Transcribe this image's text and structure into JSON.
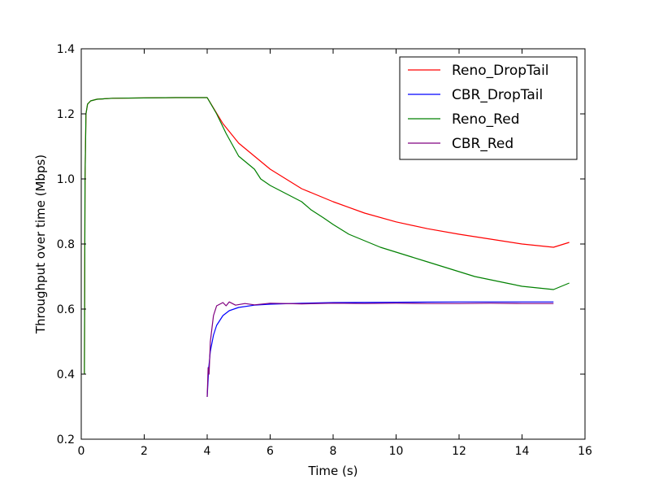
{
  "chart_data": {
    "type": "line",
    "title": "",
    "xlabel": "Time (s)",
    "ylabel": "Throughput over time (Mbps)",
    "xlim": [
      0,
      16
    ],
    "ylim": [
      0.2,
      1.4
    ],
    "xticks": [
      "0",
      "2",
      "4",
      "6",
      "8",
      "10",
      "12",
      "14",
      "16"
    ],
    "yticks": [
      "0.2",
      "0.4",
      "0.6",
      "0.8",
      "1.0",
      "1.2",
      "1.4"
    ],
    "grid": false,
    "legend_position": "top-right",
    "series": [
      {
        "name": "Reno_DropTail",
        "color": "#ff0000",
        "x": [
          0.1,
          0.12,
          0.15,
          0.2,
          0.3,
          0.5,
          1,
          2,
          3,
          4,
          4.5,
          5,
          6,
          7,
          8,
          9,
          10,
          11,
          12,
          13,
          14,
          15,
          15.5
        ],
        "y": [
          0.4,
          1.0,
          1.2,
          1.23,
          1.24,
          1.245,
          1.248,
          1.249,
          1.25,
          1.25,
          1.17,
          1.11,
          1.03,
          0.97,
          0.93,
          0.895,
          0.868,
          0.847,
          0.83,
          0.815,
          0.8,
          0.79,
          0.805
        ]
      },
      {
        "name": "CBR_DropTail",
        "color": "#0000ff",
        "x": [
          4.0,
          4.05,
          4.1,
          4.2,
          4.3,
          4.5,
          4.7,
          5,
          5.5,
          6,
          7,
          8,
          10,
          12,
          14,
          15
        ],
        "y": [
          0.33,
          0.42,
          0.47,
          0.52,
          0.55,
          0.58,
          0.595,
          0.605,
          0.612,
          0.615,
          0.618,
          0.62,
          0.621,
          0.622,
          0.622,
          0.622
        ]
      },
      {
        "name": "Reno_Red",
        "color": "#008000",
        "x": [
          0.1,
          0.12,
          0.15,
          0.2,
          0.3,
          0.5,
          1,
          2,
          3,
          4,
          4.3,
          4.6,
          5,
          5.5,
          5.7,
          6,
          7,
          7.3,
          7.7,
          8,
          8.5,
          9,
          9.5,
          10,
          10.5,
          11,
          11.5,
          12,
          12.5,
          13,
          13.5,
          14,
          14.5,
          15,
          15.5
        ],
        "y": [
          0.4,
          1.0,
          1.2,
          1.23,
          1.24,
          1.245,
          1.248,
          1.249,
          1.25,
          1.25,
          1.2,
          1.14,
          1.07,
          1.03,
          1.0,
          0.98,
          0.93,
          0.905,
          0.88,
          0.86,
          0.83,
          0.81,
          0.79,
          0.775,
          0.76,
          0.745,
          0.73,
          0.715,
          0.7,
          0.69,
          0.68,
          0.67,
          0.665,
          0.66,
          0.68
        ]
      },
      {
        "name": "CBR_Red",
        "color": "#800080",
        "x": [
          4.0,
          4.03,
          4.06,
          4.1,
          4.15,
          4.2,
          4.3,
          4.4,
          4.5,
          4.6,
          4.7,
          4.9,
          5.2,
          5.5,
          6,
          7,
          8,
          9,
          10,
          11,
          12,
          13,
          14,
          15
        ],
        "y": [
          0.33,
          0.42,
          0.4,
          0.5,
          0.54,
          0.58,
          0.61,
          0.615,
          0.62,
          0.61,
          0.622,
          0.612,
          0.617,
          0.613,
          0.618,
          0.616,
          0.618,
          0.617,
          0.618,
          0.617,
          0.617,
          0.618,
          0.617,
          0.617
        ]
      }
    ]
  }
}
